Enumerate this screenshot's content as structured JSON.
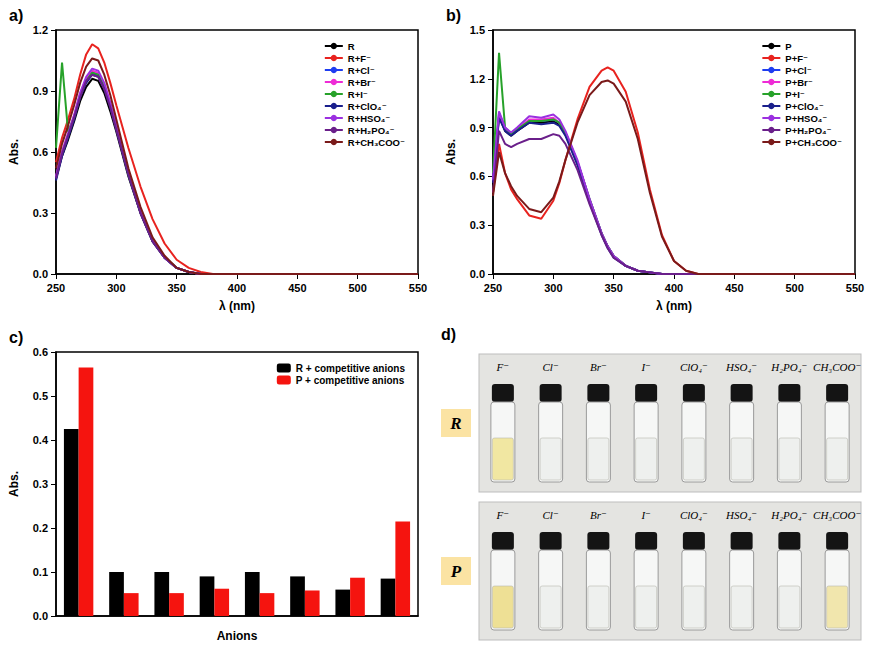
{
  "chart_data": [
    {
      "type": "line",
      "title": "a)",
      "x_label": "λ (nm)",
      "y_label": "Abs.",
      "xlim": [
        250,
        550
      ],
      "xticks": [
        250,
        300,
        350,
        400,
        450,
        500,
        550
      ],
      "ylim": [
        0,
        1.2
      ],
      "yticks": [
        {
          "value": 0,
          "label": "0.0"
        },
        {
          "value": 0.3,
          "label": "0.3"
        },
        {
          "value": 0.6,
          "label": "0.6"
        },
        {
          "value": 0.9,
          "label": "0.9"
        },
        {
          "value": 1.2,
          "label": "1.2"
        }
      ],
      "grid": false,
      "legend": "upper right",
      "x": [
        250,
        255,
        260,
        265,
        270,
        275,
        280,
        285,
        290,
        295,
        300,
        310,
        320,
        330,
        340,
        350,
        360,
        370,
        380,
        400,
        450,
        500,
        550
      ],
      "series": [
        {
          "name": "R",
          "color": "#000000",
          "values": [
            0.47,
            0.58,
            0.66,
            0.75,
            0.85,
            0.92,
            0.96,
            0.95,
            0.89,
            0.8,
            0.7,
            0.48,
            0.3,
            0.16,
            0.08,
            0.03,
            0.01,
            0,
            0,
            0,
            0,
            0,
            0
          ]
        },
        {
          "name": "R+F⁻",
          "color": "#e8231f",
          "values": [
            0.55,
            0.67,
            0.76,
            0.86,
            0.98,
            1.08,
            1.13,
            1.11,
            1.04,
            0.94,
            0.83,
            0.62,
            0.43,
            0.27,
            0.15,
            0.07,
            0.03,
            0.01,
            0,
            0,
            0,
            0,
            0
          ]
        },
        {
          "name": "R+Cl⁻",
          "color": "#1f3df0",
          "values": [
            0.47,
            0.59,
            0.68,
            0.77,
            0.88,
            0.95,
            0.99,
            0.98,
            0.92,
            0.83,
            0.72,
            0.49,
            0.31,
            0.17,
            0.08,
            0.03,
            0.01,
            0,
            0,
            0,
            0,
            0,
            0
          ]
        },
        {
          "name": "R+Br⁻",
          "color": "#ee2bd6",
          "values": [
            0.48,
            0.6,
            0.69,
            0.78,
            0.89,
            0.96,
            1.0,
            0.99,
            0.93,
            0.84,
            0.73,
            0.5,
            0.31,
            0.17,
            0.08,
            0.03,
            0.01,
            0,
            0,
            0,
            0,
            0,
            0
          ]
        },
        {
          "name": "R+I⁻",
          "color": "#27a22a",
          "values": [
            0.62,
            1.04,
            0.7,
            0.77,
            0.88,
            0.95,
            0.99,
            0.98,
            0.92,
            0.83,
            0.72,
            0.49,
            0.31,
            0.17,
            0.08,
            0.03,
            0.01,
            0,
            0,
            0,
            0,
            0,
            0
          ]
        },
        {
          "name": "R+ClO₄⁻",
          "color": "#1a1f8c",
          "values": [
            0.46,
            0.58,
            0.67,
            0.76,
            0.87,
            0.94,
            0.98,
            0.97,
            0.91,
            0.82,
            0.71,
            0.49,
            0.3,
            0.16,
            0.08,
            0.03,
            0.01,
            0,
            0,
            0,
            0,
            0,
            0
          ]
        },
        {
          "name": "R+HSO₄⁻",
          "color": "#9b30e0",
          "values": [
            0.48,
            0.6,
            0.69,
            0.78,
            0.89,
            0.97,
            1.01,
            1.0,
            0.94,
            0.84,
            0.73,
            0.5,
            0.31,
            0.17,
            0.08,
            0.03,
            0.01,
            0,
            0,
            0,
            0,
            0,
            0
          ]
        },
        {
          "name": "R+H₂PO₄⁻",
          "color": "#6a1f8a",
          "values": [
            0.47,
            0.59,
            0.68,
            0.77,
            0.87,
            0.95,
            0.98,
            0.97,
            0.91,
            0.82,
            0.71,
            0.49,
            0.3,
            0.16,
            0.08,
            0.03,
            0.01,
            0,
            0,
            0,
            0,
            0,
            0
          ]
        },
        {
          "name": "R+CH₃COO⁻",
          "color": "#7a1a1a",
          "values": [
            0.52,
            0.64,
            0.73,
            0.83,
            0.94,
            1.02,
            1.06,
            1.05,
            0.98,
            0.88,
            0.76,
            0.52,
            0.33,
            0.18,
            0.09,
            0.03,
            0.01,
            0,
            0,
            0,
            0,
            0,
            0
          ]
        }
      ]
    },
    {
      "type": "line",
      "title": "b)",
      "x_label": "λ (nm)",
      "y_label": "Abs.",
      "xlim": [
        250,
        550
      ],
      "xticks": [
        250,
        300,
        350,
        400,
        450,
        500,
        550
      ],
      "ylim": [
        0,
        1.5
      ],
      "yticks": [
        {
          "value": 0,
          "label": "0.0"
        },
        {
          "value": 0.3,
          "label": "0.3"
        },
        {
          "value": 0.6,
          "label": "0.6"
        },
        {
          "value": 0.9,
          "label": "0.9"
        },
        {
          "value": 1.2,
          "label": "1.2"
        },
        {
          "value": 1.5,
          "label": "1.5"
        }
      ],
      "grid": false,
      "legend": "upper right",
      "x": [
        250,
        255,
        260,
        265,
        270,
        280,
        290,
        300,
        305,
        310,
        320,
        330,
        340,
        345,
        350,
        360,
        370,
        380,
        390,
        400,
        410,
        420,
        450,
        500,
        550
      ],
      "series": [
        {
          "name": "P",
          "color": "#000000",
          "values": [
            0.55,
            0.97,
            0.88,
            0.85,
            0.88,
            0.93,
            0.93,
            0.94,
            0.92,
            0.86,
            0.68,
            0.45,
            0.25,
            0.17,
            0.11,
            0.05,
            0.02,
            0.01,
            0,
            0,
            0,
            0,
            0,
            0,
            0
          ]
        },
        {
          "name": "P+F⁻",
          "color": "#e8231f",
          "values": [
            0.5,
            0.8,
            0.62,
            0.52,
            0.46,
            0.36,
            0.34,
            0.45,
            0.56,
            0.7,
            0.95,
            1.15,
            1.25,
            1.27,
            1.25,
            1.12,
            0.87,
            0.52,
            0.24,
            0.08,
            0.02,
            0,
            0,
            0,
            0
          ]
        },
        {
          "name": "P+Cl⁻",
          "color": "#1f3df0",
          "values": [
            0.58,
            0.99,
            0.9,
            0.86,
            0.89,
            0.94,
            0.94,
            0.95,
            0.93,
            0.87,
            0.69,
            0.46,
            0.25,
            0.17,
            0.11,
            0.05,
            0.02,
            0.01,
            0,
            0,
            0,
            0,
            0,
            0,
            0
          ]
        },
        {
          "name": "P+Br⁻",
          "color": "#ee2bd6",
          "values": [
            0.57,
            0.98,
            0.89,
            0.86,
            0.89,
            0.95,
            0.95,
            0.96,
            0.93,
            0.87,
            0.69,
            0.46,
            0.25,
            0.17,
            0.11,
            0.05,
            0.02,
            0.01,
            0,
            0,
            0,
            0,
            0,
            0,
            0
          ]
        },
        {
          "name": "P+I⁻",
          "color": "#27a22a",
          "values": [
            0.62,
            1.36,
            0.9,
            0.86,
            0.89,
            0.94,
            0.94,
            0.95,
            0.93,
            0.87,
            0.69,
            0.46,
            0.25,
            0.17,
            0.11,
            0.05,
            0.02,
            0.01,
            0,
            0,
            0,
            0,
            0,
            0,
            0
          ]
        },
        {
          "name": "P+ClO₄⁻",
          "color": "#1a1f8c",
          "values": [
            0.56,
            0.96,
            0.88,
            0.85,
            0.88,
            0.93,
            0.92,
            0.93,
            0.91,
            0.85,
            0.67,
            0.44,
            0.24,
            0.16,
            0.1,
            0.05,
            0.02,
            0.01,
            0,
            0,
            0,
            0,
            0,
            0,
            0
          ]
        },
        {
          "name": "P+HSO₄⁻",
          "color": "#9b30e0",
          "values": [
            0.58,
            1.0,
            0.9,
            0.87,
            0.9,
            0.97,
            0.96,
            0.98,
            0.95,
            0.88,
            0.7,
            0.46,
            0.25,
            0.17,
            0.11,
            0.05,
            0.02,
            0.01,
            0,
            0,
            0,
            0,
            0,
            0,
            0
          ]
        },
        {
          "name": "P+H₂PO₄⁻",
          "color": "#6a1f8a",
          "values": [
            0.5,
            0.88,
            0.8,
            0.78,
            0.8,
            0.83,
            0.83,
            0.86,
            0.85,
            0.8,
            0.64,
            0.43,
            0.24,
            0.16,
            0.1,
            0.05,
            0.02,
            0.01,
            0,
            0,
            0,
            0,
            0,
            0,
            0
          ]
        },
        {
          "name": "P+CH₃COO⁻",
          "color": "#7a1a1a",
          "values": [
            0.48,
            0.75,
            0.62,
            0.54,
            0.48,
            0.4,
            0.38,
            0.47,
            0.57,
            0.7,
            0.93,
            1.1,
            1.18,
            1.19,
            1.17,
            1.06,
            0.83,
            0.5,
            0.23,
            0.08,
            0.02,
            0,
            0,
            0,
            0
          ]
        }
      ]
    },
    {
      "type": "bar",
      "title": "c)",
      "x_label": "Anions",
      "y_label": "Abs.",
      "categories": [
        null,
        null,
        null,
        null,
        null,
        null,
        null,
        null
      ],
      "ylim": [
        0,
        0.6
      ],
      "yticks": [
        {
          "value": 0,
          "label": "0.0"
        },
        {
          "value": 0.1,
          "label": "0.1"
        },
        {
          "value": 0.2,
          "label": "0.2"
        },
        {
          "value": 0.3,
          "label": "0.3"
        },
        {
          "value": 0.4,
          "label": "0.4"
        },
        {
          "value": 0.5,
          "label": "0.5"
        },
        {
          "value": 0.6,
          "label": "0.6"
        }
      ],
      "grid": false,
      "legend": "upper right",
      "tick_labels": "y",
      "series": [
        {
          "name": "R + competitive anions",
          "color": "#000000",
          "values": [
            0.425,
            0.1,
            0.1,
            0.09,
            0.1,
            0.09,
            0.06,
            0.085
          ]
        },
        {
          "name": "P + competitive anions",
          "color": "#f5140f",
          "values": [
            0.565,
            0.052,
            0.052,
            0.062,
            0.052,
            0.058,
            0.087,
            0.215
          ]
        }
      ]
    }
  ],
  "photo_panel": {
    "title": "d)",
    "anions": [
      "F⁻",
      "Cl⁻",
      "Br⁻",
      "I⁻",
      "ClO₄⁻",
      "HSO₄⁻",
      "H₂PO₄⁻",
      "CH₃COO⁻"
    ],
    "rows": [
      {
        "label": "R",
        "colors": [
          "#f1e7a2",
          "#eef0ee",
          "#eef0ee",
          "#eef0ee",
          "#eef0ee",
          "#eef0ee",
          "#eef0ee",
          "#eef0ee"
        ]
      },
      {
        "label": "P",
        "colors": [
          "#eee095",
          "#eef0ee",
          "#eef0ee",
          "#eef0ee",
          "#eef0ee",
          "#eef0ee",
          "#eef0ee",
          "#f1e6ad"
        ]
      }
    ]
  }
}
